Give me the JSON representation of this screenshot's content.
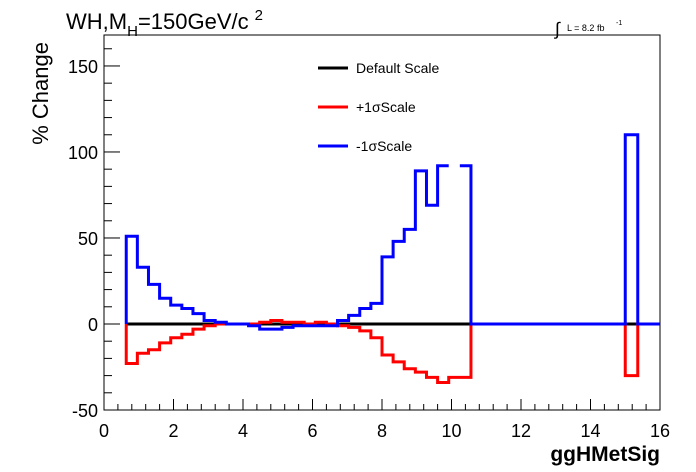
{
  "header": {
    "title_main": "WH,M",
    "title_sub": "H",
    "title_rest": "=150GeV/c",
    "title_sup": "2",
    "lumi_integral": "∫",
    "lumi_label": "L = 8.2 fb",
    "lumi_sup": "-1"
  },
  "chart_data": {
    "type": "line",
    "xlabel": "ggHMetSig",
    "ylabel": "% Change",
    "xlim": [
      0,
      16
    ],
    "ylim": [
      -50,
      168
    ],
    "xticks": [
      0,
      2,
      4,
      6,
      8,
      10,
      12,
      14,
      16
    ],
    "xtick_labels": [
      "0",
      "2",
      "4",
      "6",
      "8",
      "10",
      "12",
      "14",
      "16"
    ],
    "yticks": [
      -50,
      0,
      50,
      100,
      150
    ],
    "ytick_labels": [
      "-50",
      "0",
      "50",
      "100",
      "150"
    ],
    "grid": false,
    "legend_position": "top-center",
    "bin_edges": [
      0.64,
      0.96,
      1.28,
      1.6,
      1.92,
      2.24,
      2.56,
      2.88,
      3.2,
      3.52,
      3.84,
      4.16,
      4.48,
      4.8,
      5.12,
      5.44,
      5.76,
      6.08,
      6.4,
      6.72,
      7.04,
      7.36,
      7.68,
      8.0,
      8.32,
      8.64,
      8.96,
      9.28,
      9.6,
      9.92,
      10.24,
      10.56
    ],
    "series": [
      {
        "name": "Default Scale",
        "color": "#000000",
        "values": [
          0,
          0,
          0,
          0,
          0,
          0,
          0,
          0,
          0,
          0,
          0,
          0,
          0,
          0,
          0,
          0,
          0,
          0,
          0,
          0,
          0,
          0,
          0,
          0,
          0,
          0,
          0,
          0,
          0,
          0,
          0
        ]
      },
      {
        "name": "+1σScale",
        "color": "#ff0000",
        "values": [
          -23,
          -17,
          -15,
          -11,
          -8,
          -6,
          -3,
          -1,
          0,
          0,
          0,
          0,
          1,
          2,
          1,
          1,
          0,
          1,
          0,
          -1,
          -2,
          -4,
          -8,
          -18,
          -22,
          -26,
          -28,
          -31,
          -34,
          -31,
          -31
        ],
        "extra_bins": [
          {
            "x0": 15.0,
            "x1": 15.36,
            "value": -30
          }
        ]
      },
      {
        "name": "-1σScale",
        "color": "#0000ff",
        "values": [
          51,
          33,
          23,
          15,
          11,
          9,
          6,
          2,
          1,
          0,
          0,
          -1,
          -3,
          -3,
          -2,
          -1,
          -1,
          -1,
          -1,
          2,
          5,
          9,
          12,
          39,
          48,
          55,
          89,
          69,
          92,
          null,
          92
        ],
        "extra_bins": [
          {
            "x0": 15.0,
            "x1": 15.36,
            "value": 110
          }
        ]
      }
    ]
  }
}
